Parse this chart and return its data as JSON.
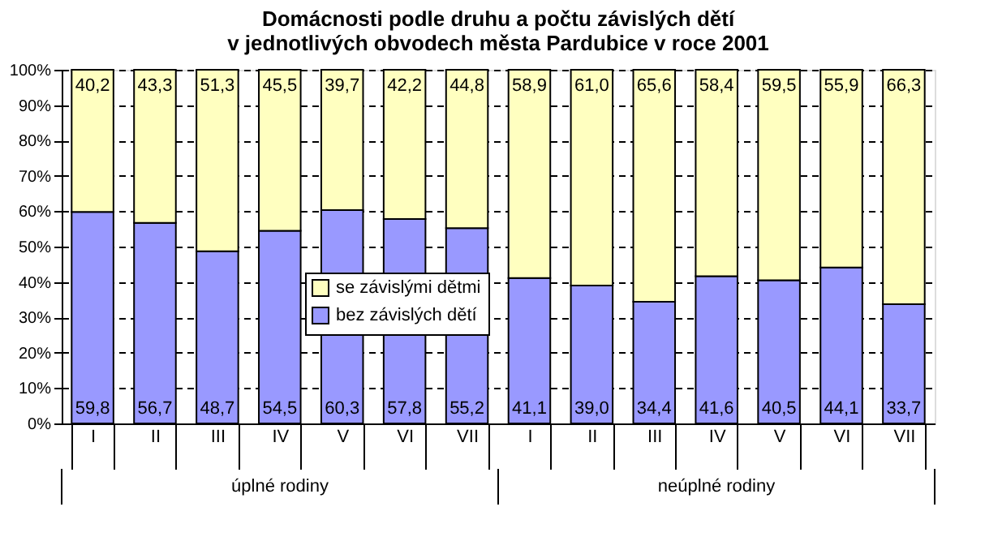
{
  "chart_data": {
    "type": "bar",
    "stacked": true,
    "title": "Domácnosti podle druhu a počtu závislých dětí\nv jednotlivých obvodech města Pardubice v roce 2001",
    "categories": [
      "I",
      "II",
      "III",
      "IV",
      "V",
      "VI",
      "VII",
      "I",
      "II",
      "III",
      "IV",
      "V",
      "VI",
      "VII"
    ],
    "series": [
      {
        "name": "bez závislých dětí",
        "color": "#9999ff",
        "values": [
          59.8,
          56.7,
          48.7,
          54.5,
          60.3,
          57.8,
          55.2,
          41.1,
          39.0,
          34.4,
          41.6,
          40.5,
          44.1,
          33.7
        ],
        "value_labels": [
          "59,8",
          "56,7",
          "48,7",
          "54,5",
          "60,3",
          "57,8",
          "55,2",
          "41,1",
          "39,0",
          "34,4",
          "41,6",
          "40,5",
          "44,1",
          "33,7"
        ]
      },
      {
        "name": "se závislými dětmi",
        "color": "#ffffc0",
        "values": [
          40.2,
          43.3,
          51.3,
          45.5,
          39.7,
          42.2,
          44.8,
          58.9,
          61.0,
          65.6,
          58.4,
          59.5,
          55.9,
          66.3
        ],
        "value_labels": [
          "40,2",
          "43,3",
          "51,3",
          "45,5",
          "39,7",
          "42,2",
          "44,8",
          "58,9",
          "61,0",
          "65,6",
          "58,4",
          "59,5",
          "55,9",
          "66,3"
        ]
      }
    ],
    "ylim": [
      0,
      100
    ],
    "yticks": [
      {
        "value": 0,
        "label": "0%"
      },
      {
        "value": 10,
        "label": "10%"
      },
      {
        "value": 20,
        "label": "20%"
      },
      {
        "value": 30,
        "label": "30%"
      },
      {
        "value": 40,
        "label": "40%"
      },
      {
        "value": 50,
        "label": "50%"
      },
      {
        "value": 60,
        "label": "60%"
      },
      {
        "value": 70,
        "label": "70%"
      },
      {
        "value": 80,
        "label": "80%"
      },
      {
        "value": 90,
        "label": "90%"
      },
      {
        "value": 100,
        "label": "100%"
      }
    ],
    "grid": "y",
    "legend": "center",
    "annotations": [
      "úplné rodiny",
      "neúplné rodiny"
    ]
  }
}
